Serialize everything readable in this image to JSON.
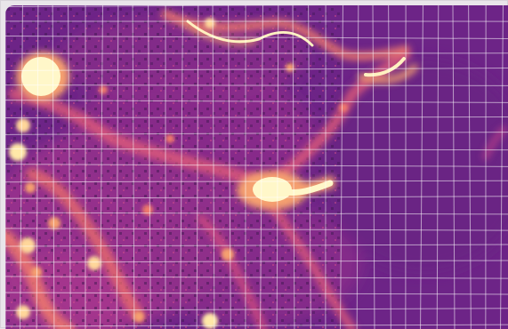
{
  "map": {
    "kind": "density-heatmap",
    "colormap": {
      "name": "magma-like",
      "low": "#5b1f72",
      "mid_low": "#7b2789",
      "mid": "#b23b8d",
      "mid_high": "#ea6d6b",
      "high": "#ffe8a8",
      "peak": "#fff7c9"
    },
    "grid_overlay": {
      "visible": true,
      "color": "#ffffff",
      "opacity": 0.55
    },
    "hotspots": [
      {
        "id": "west-bright-blob",
        "level": 1.0
      },
      {
        "id": "central-bright-blob",
        "level": 1.0
      },
      {
        "id": "southwest-dense-area",
        "level": 0.75
      },
      {
        "id": "northeast-corridor",
        "level": 0.7
      },
      {
        "id": "bottom-center-cluster",
        "level": 0.65
      }
    ],
    "labels": []
  }
}
